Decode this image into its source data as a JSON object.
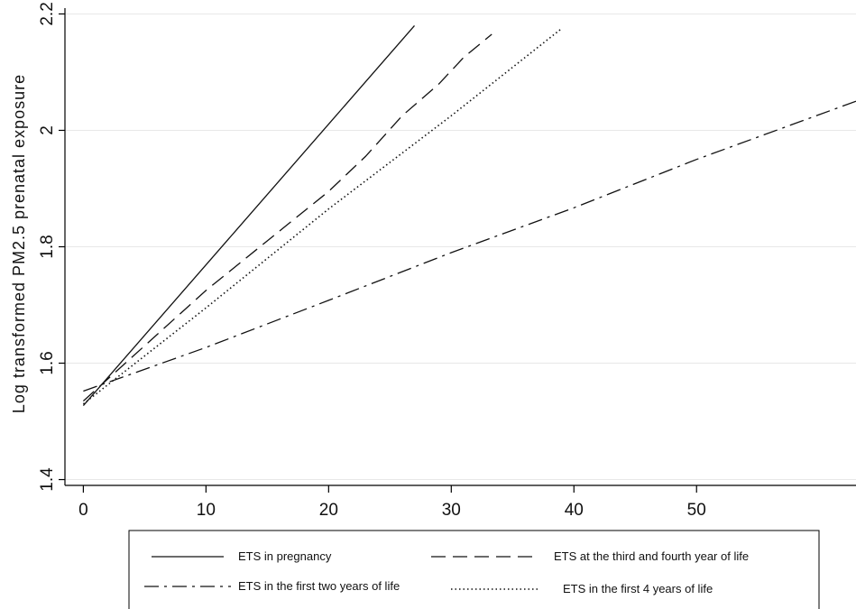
{
  "chart_data": {
    "type": "line",
    "title": "",
    "xlabel": "",
    "ylabel": "Log transformed PM2.5 prenatal exposure",
    "xlim": [
      -1.5,
      63
    ],
    "ylim": [
      1.39,
      2.21
    ],
    "xticks": [
      "0",
      "10",
      "20",
      "30",
      "40",
      "50"
    ],
    "yticks": [
      "1.4",
      "1.6",
      "1.8",
      "2",
      "2.2"
    ],
    "grid": "horizontal",
    "legend_position": "bottom",
    "colors": {
      "line": "#111111",
      "grid": "#e8e8e8",
      "axis": "#000000"
    },
    "series": [
      {
        "name": "ETS in pregnancy",
        "dash": "solid",
        "points": [
          [
            0,
            1.527
          ],
          [
            27,
            2.18
          ]
        ]
      },
      {
        "name": "ETS at the third and fourth year of life",
        "dash": "dashed",
        "points": [
          [
            0,
            1.535
          ],
          [
            5,
            1.63
          ],
          [
            10,
            1.725
          ],
          [
            15,
            1.81
          ],
          [
            20,
            1.895
          ],
          [
            23,
            1.955
          ],
          [
            26,
            2.025
          ],
          [
            29,
            2.08
          ],
          [
            31,
            2.125
          ],
          [
            33.3,
            2.165
          ]
        ]
      },
      {
        "name": "ETS in the first two years of life",
        "dash": "dashdot",
        "points": [
          [
            0,
            1.552
          ],
          [
            10,
            1.627
          ],
          [
            20,
            1.708
          ],
          [
            30,
            1.79
          ],
          [
            40,
            1.867
          ],
          [
            50,
            1.95
          ],
          [
            63,
            2.05
          ]
        ]
      },
      {
        "name": "ETS in the first 4 years of life",
        "dash": "dotted",
        "points": [
          [
            0,
            1.53
          ],
          [
            10,
            1.695
          ],
          [
            20,
            1.865
          ],
          [
            30,
            2.025
          ],
          [
            39,
            2.175
          ]
        ]
      }
    ]
  }
}
